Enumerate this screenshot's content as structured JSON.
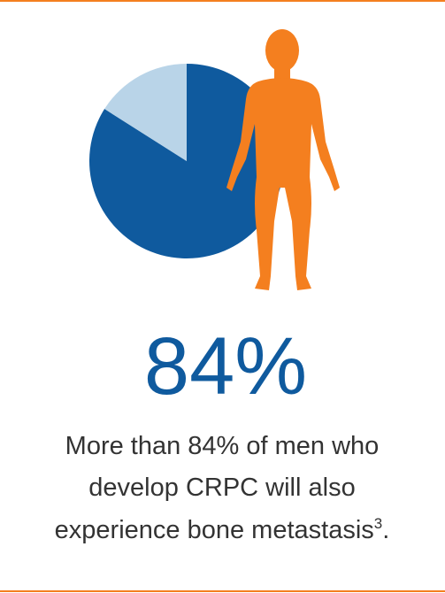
{
  "chart_data": {
    "type": "pie",
    "values": [
      84,
      16
    ],
    "value_labels": [
      "84%",
      null
    ],
    "colors": [
      "#0f5a9e",
      "#b9d4e8"
    ]
  },
  "caption_lines": [
    "More than 84% of men who",
    "develop CRPC will also",
    "experience bone metastasis"
  ],
  "footnote_ref": "3",
  "caption_end": "."
}
